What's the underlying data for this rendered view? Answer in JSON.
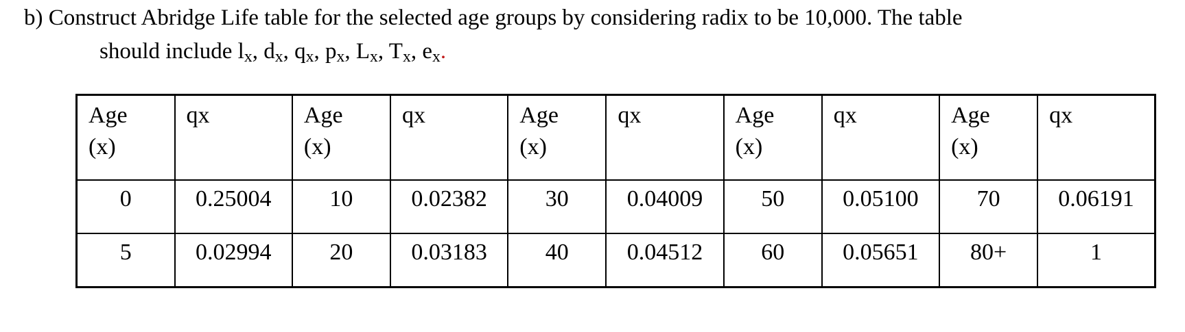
{
  "question": {
    "line1": "b) Construct Abridge Life table for the selected age groups by considering radix to be 10,000. The table",
    "line2_prefix": "should include ",
    "symbols": [
      {
        "base": "l",
        "sub": "x"
      },
      {
        "base": "d",
        "sub": "x"
      },
      {
        "base": "q",
        "sub": "x"
      },
      {
        "base": "p",
        "sub": "x"
      },
      {
        "base": "L",
        "sub": "x"
      },
      {
        "base": "T",
        "sub": "x"
      },
      {
        "base": "e",
        "sub": "x"
      }
    ],
    "symbol_separator": ", ",
    "end_period": ".",
    "end_period_color": "#c11b1b"
  },
  "table": {
    "headers": [
      {
        "line1": "Age",
        "line2": "(x)"
      },
      {
        "line1": "qx",
        "line2": ""
      },
      {
        "line1": "Age",
        "line2": "(x)"
      },
      {
        "line1": "qx",
        "line2": ""
      },
      {
        "line1": "Age",
        "line2": "(x)"
      },
      {
        "line1": "qx",
        "line2": ""
      },
      {
        "line1": "Age",
        "line2": "(x)"
      },
      {
        "line1": "qx",
        "line2": ""
      },
      {
        "line1": "Age",
        "line2": "(x)"
      },
      {
        "line1": "qx",
        "line2": ""
      }
    ],
    "rows": [
      [
        "0",
        "0.25004",
        "10",
        "0.02382",
        "30",
        "0.04009",
        "50",
        "0.05100",
        "70",
        "0.06191"
      ],
      [
        "5",
        "0.02994",
        "20",
        "0.03183",
        "40",
        "0.04512",
        "60",
        "0.05651",
        "80+",
        "1"
      ]
    ]
  }
}
